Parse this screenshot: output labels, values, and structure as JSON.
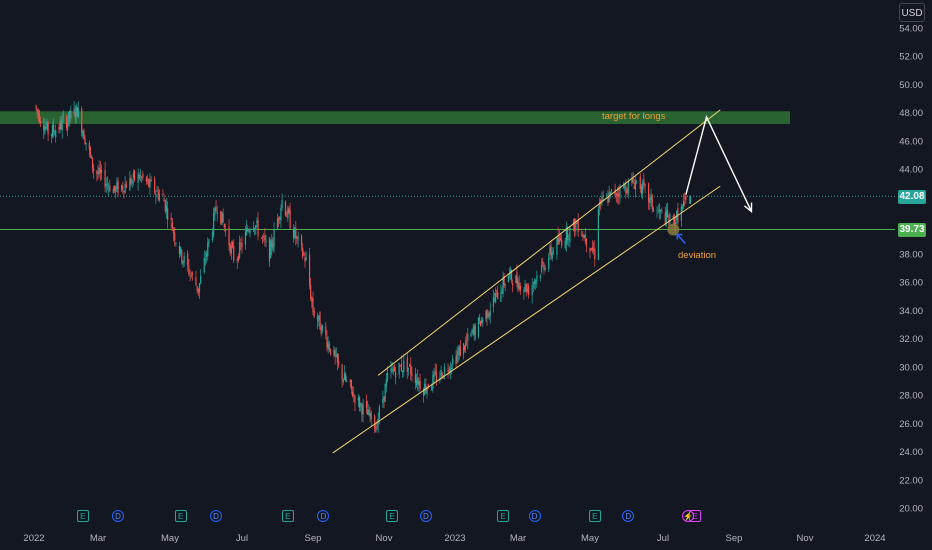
{
  "currency": "USD",
  "colors": {
    "background": "#131722",
    "up": "#26a69a",
    "down": "#ef5350",
    "channel": "#f5d76e",
    "zone": "#2e6b34",
    "support": "#4caf50",
    "arrow": "#ffffff",
    "annotation": "#f0a030"
  },
  "chart_data": {
    "type": "candlestick",
    "y_ticks": [
      "54.00",
      "52.00",
      "50.00",
      "48.00",
      "46.00",
      "44.00",
      "42.00",
      "40.00",
      "38.00",
      "36.00",
      "34.00",
      "32.00",
      "30.00",
      "28.00",
      "26.00",
      "24.00",
      "22.00",
      "20.00"
    ],
    "x_ticks": [
      "2022",
      "Mar",
      "May",
      "Jul",
      "Sep",
      "Nov",
      "2023",
      "Mar",
      "May",
      "Jul",
      "Sep",
      "Nov",
      "2024"
    ],
    "ylim": [
      19.2,
      55
    ],
    "last_price": "42.08",
    "level_price": "39.73",
    "grid": false,
    "annotations": {
      "target": "target for longs",
      "deviation": "deviation"
    },
    "target_zone": [
      47.2,
      48.1
    ],
    "horizontal_line": 39.73,
    "channel": {
      "upper": {
        "from": [
          "2022-10-27",
          29.4
        ],
        "to": [
          "2023-08-20",
          48.2
        ]
      },
      "lower": {
        "from": [
          "2022-09-18",
          23.9
        ],
        "to": [
          "2023-08-20",
          42.8
        ]
      }
    },
    "projection": [
      [
        "2023-07-21",
        42.2
      ],
      [
        "2023-08-08",
        47.7
      ],
      [
        "2023-09-16",
        41.0
      ]
    ],
    "price_path": [
      [
        "2022-01-01",
        48.5
      ],
      [
        "2022-01-15",
        46.5
      ],
      [
        "2022-02-01",
        47.5
      ],
      [
        "2022-02-10",
        48.2
      ],
      [
        "2022-02-25",
        44.0
      ],
      [
        "2022-03-15",
        42.5
      ],
      [
        "2022-04-05",
        43.5
      ],
      [
        "2022-04-25",
        42.0
      ],
      [
        "2022-05-10",
        38.0
      ],
      [
        "2022-05-25",
        35.5
      ],
      [
        "2022-06-10",
        41.5
      ],
      [
        "2022-06-25",
        37.5
      ],
      [
        "2022-07-10",
        40.5
      ],
      [
        "2022-07-25",
        38.0
      ],
      [
        "2022-08-05",
        41.8
      ],
      [
        "2022-08-20",
        38.5
      ],
      [
        "2022-08-26",
        37.5
      ],
      [
        "2022-09-01",
        34.0
      ],
      [
        "2022-09-10",
        32.5
      ],
      [
        "2022-09-25",
        29.5
      ],
      [
        "2022-10-10",
        27.5
      ],
      [
        "2022-10-25",
        25.8
      ],
      [
        "2022-11-05",
        29.5
      ],
      [
        "2022-11-20",
        30.2
      ],
      [
        "2022-12-05",
        28.5
      ],
      [
        "2022-12-20",
        29.5
      ],
      [
        "2023-01-10",
        31.5
      ],
      [
        "2023-02-01",
        34.0
      ],
      [
        "2023-02-20",
        36.5
      ],
      [
        "2023-03-10",
        35.5
      ],
      [
        "2023-04-01",
        38.5
      ],
      [
        "2023-04-20",
        40.2
      ],
      [
        "2023-05-05",
        38.0
      ],
      [
        "2023-05-08",
        41.5
      ],
      [
        "2023-05-25",
        42.5
      ],
      [
        "2023-06-10",
        43.2
      ],
      [
        "2023-06-25",
        41.0
      ],
      [
        "2023-07-10",
        40.2
      ],
      [
        "2023-07-25",
        42.1
      ]
    ]
  },
  "events": [
    {
      "type": "E",
      "date": "2022-02-15"
    },
    {
      "type": "D",
      "date": "2022-03-18"
    },
    {
      "type": "E",
      "date": "2022-05-10"
    },
    {
      "type": "D",
      "date": "2022-06-09"
    },
    {
      "type": "E",
      "date": "2022-08-10"
    },
    {
      "type": "D",
      "date": "2022-09-10"
    },
    {
      "type": "E",
      "date": "2022-11-08"
    },
    {
      "type": "D",
      "date": "2022-12-07"
    },
    {
      "type": "E",
      "date": "2023-02-15"
    },
    {
      "type": "D",
      "date": "2023-03-15"
    },
    {
      "type": "E",
      "date": "2023-05-05"
    },
    {
      "type": "D",
      "date": "2023-06-02"
    },
    {
      "type": "S",
      "date": "2023-07-23"
    },
    {
      "type": "E",
      "date": "2023-07-29"
    }
  ]
}
